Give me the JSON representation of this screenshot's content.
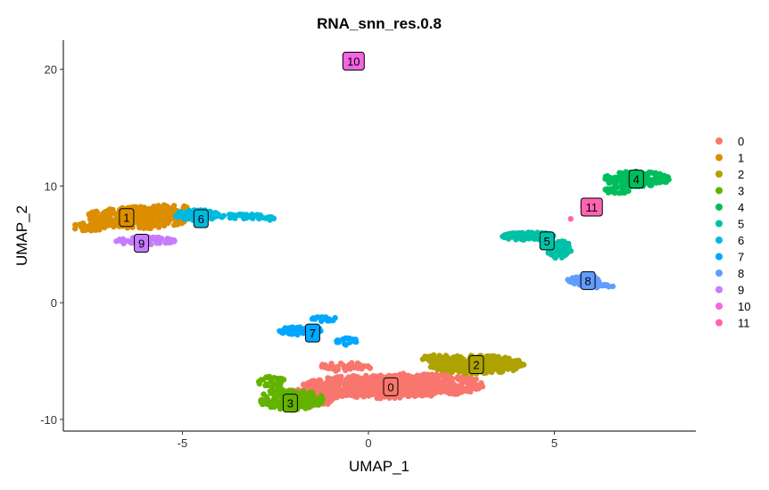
{
  "chart_data": {
    "type": "scatter",
    "title": "RNA_snn_res.0.8",
    "xlabel": "UMAP_1",
    "ylabel": "UMAP_2",
    "xlim": [
      -8.2,
      8.8
    ],
    "ylim": [
      -11.0,
      22.5
    ],
    "xticks": [
      -5,
      0,
      5
    ],
    "yticks": [
      -10,
      0,
      10,
      20
    ],
    "grid": false,
    "legend_position": "right",
    "clusters": [
      {
        "name": "0",
        "color": "#F8766D",
        "label_pos": [
          0.6,
          -7.2
        ],
        "blobs": [
          [
            0.2,
            -7.2,
            2.0,
            1.0,
            520
          ],
          [
            1.5,
            -7.0,
            1.6,
            1.0,
            300
          ],
          [
            -1.6,
            -8.1,
            0.8,
            0.8,
            120
          ],
          [
            -0.6,
            -5.5,
            0.8,
            0.4,
            40
          ]
        ]
      },
      {
        "name": "1",
        "color": "#DB8E00",
        "label_pos": [
          -6.5,
          7.3
        ],
        "blobs": [
          [
            -6.2,
            7.3,
            1.4,
            0.95,
            280
          ],
          [
            -7.5,
            6.5,
            0.45,
            0.35,
            50
          ],
          [
            -5.3,
            7.9,
            0.7,
            0.5,
            60
          ]
        ]
      },
      {
        "name": "2",
        "color": "#AEA200",
        "label_pos": [
          2.9,
          -5.3
        ],
        "blobs": [
          [
            2.9,
            -5.3,
            1.3,
            0.8,
            220
          ],
          [
            2.0,
            -4.8,
            0.6,
            0.4,
            40
          ]
        ]
      },
      {
        "name": "3",
        "color": "#64B200",
        "label_pos": [
          -2.1,
          -8.6
        ],
        "blobs": [
          [
            -2.1,
            -8.3,
            0.9,
            0.9,
            170
          ],
          [
            -2.6,
            -6.8,
            0.4,
            0.5,
            30
          ]
        ]
      },
      {
        "name": "4",
        "color": "#00BD5C",
        "label_pos": [
          7.2,
          10.6
        ],
        "blobs": [
          [
            7.2,
            10.6,
            0.9,
            0.65,
            170
          ],
          [
            6.6,
            9.6,
            0.4,
            0.3,
            20
          ]
        ]
      },
      {
        "name": "5",
        "color": "#00C1A7",
        "label_pos": [
          4.8,
          5.3
        ],
        "blobs": [
          [
            4.3,
            5.7,
            0.7,
            0.35,
            90
          ],
          [
            5.1,
            4.6,
            0.35,
            0.8,
            60
          ]
        ]
      },
      {
        "name": "6",
        "color": "#00BADE",
        "label_pos": [
          -4.5,
          7.2
        ],
        "blobs": [
          [
            -4.6,
            7.5,
            0.6,
            0.45,
            110
          ],
          [
            -3.4,
            7.4,
            0.6,
            0.2,
            30
          ],
          [
            -2.7,
            7.2,
            0.25,
            0.15,
            10
          ]
        ]
      },
      {
        "name": "7",
        "color": "#00A6FF",
        "label_pos": [
          -1.5,
          -2.6
        ],
        "blobs": [
          [
            -1.8,
            -2.4,
            0.6,
            0.35,
            70
          ],
          [
            -1.2,
            -1.4,
            0.35,
            0.2,
            20
          ],
          [
            -0.6,
            -3.3,
            0.3,
            0.35,
            20
          ]
        ]
      },
      {
        "name": "8",
        "color": "#619CFF",
        "label_pos": [
          5.9,
          1.9
        ],
        "blobs": [
          [
            5.8,
            1.9,
            0.45,
            0.4,
            60
          ],
          [
            6.3,
            1.4,
            0.3,
            0.15,
            15
          ]
        ]
      },
      {
        "name": "9",
        "color": "#C77CFF",
        "label_pos": [
          -6.1,
          5.1
        ],
        "blobs": [
          [
            -6.0,
            5.3,
            0.8,
            0.35,
            70
          ]
        ]
      },
      {
        "name": "10",
        "color": "#F564E3",
        "label_pos": [
          -0.4,
          20.7
        ],
        "blobs": [
          [
            -0.4,
            20.7,
            0.05,
            0.05,
            1
          ]
        ]
      },
      {
        "name": "11",
        "color": "#FF64B0",
        "label_pos": [
          6.0,
          8.2
        ],
        "blobs": [
          [
            5.9,
            8.3,
            0.15,
            0.15,
            6
          ],
          [
            5.4,
            7.2,
            0.05,
            0.05,
            1
          ]
        ]
      }
    ]
  }
}
